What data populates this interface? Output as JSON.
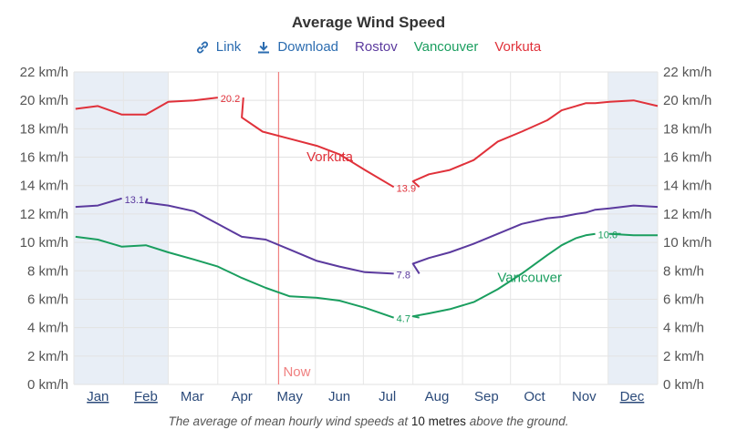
{
  "header": {
    "title": "Average Wind Speed",
    "link_label": "Link",
    "download_label": "Download"
  },
  "caption": {
    "prefix": "The average of mean hourly wind speeds at",
    "emphasis": "10 metres",
    "suffix": "above the ground."
  },
  "colors": {
    "link": "#2b6cb0",
    "rostov": "#5b3a9e",
    "vancouver": "#1a9e5f",
    "vorkuta": "#e0313a",
    "now": "#f08080",
    "shade": "#e8eef6"
  },
  "chart_data": {
    "type": "line",
    "y_unit": "km/h",
    "ylim": [
      0,
      22
    ],
    "y_ticks": [
      "0 km/h",
      "2 km/h",
      "4 km/h",
      "6 km/h",
      "8 km/h",
      "10 km/h",
      "12 km/h",
      "14 km/h",
      "16 km/h",
      "18 km/h",
      "20 km/h",
      "22 km/h"
    ],
    "categories": [
      "Jan",
      "Feb",
      "Mar",
      "Apr",
      "May",
      "Jun",
      "Jul",
      "Aug",
      "Sep",
      "Oct",
      "Nov",
      "Dec"
    ],
    "underlined_categories": [
      "Jan",
      "Feb",
      "Dec"
    ],
    "now_label": "Now",
    "now_day": 128,
    "shaded_ranges": [
      [
        0,
        59
      ],
      [
        334,
        365
      ]
    ],
    "grid": true,
    "series": [
      {
        "name": "Vorkuta",
        "color_key": "vorkuta",
        "x": [
          1,
          15,
          30,
          45,
          59,
          75,
          90,
          105,
          118,
          135,
          152,
          166,
          182,
          200,
          212,
          222,
          235,
          250,
          265,
          280,
          296,
          305,
          314,
          320,
          326,
          335,
          350,
          365
        ],
        "values": [
          19.4,
          19.6,
          19.0,
          19.0,
          19.9,
          20.0,
          20.2,
          18.8,
          17.8,
          17.3,
          16.8,
          16.2,
          15.1,
          13.9,
          14.3,
          14.8,
          15.1,
          15.8,
          17.1,
          17.8,
          18.6,
          19.3,
          19.6,
          19.8,
          19.8,
          19.9,
          20.0,
          19.6
        ],
        "line_label": "Vorkuta",
        "data_labels": [
          {
            "x": 90,
            "text": "20.2"
          },
          {
            "x": 200,
            "text": "13.9"
          }
        ]
      },
      {
        "name": "Rostov",
        "color_key": "rostov",
        "x": [
          1,
          15,
          30,
          45,
          59,
          75,
          90,
          105,
          120,
          135,
          152,
          166,
          182,
          200,
          212,
          222,
          235,
          250,
          265,
          280,
          296,
          305,
          314,
          320,
          326,
          335,
          350,
          365
        ],
        "values": [
          12.5,
          12.6,
          13.1,
          12.8,
          12.6,
          12.2,
          11.3,
          10.4,
          10.2,
          9.5,
          8.7,
          8.3,
          7.9,
          7.8,
          8.5,
          8.9,
          9.3,
          9.9,
          10.6,
          11.3,
          11.7,
          11.8,
          12.0,
          12.1,
          12.3,
          12.4,
          12.6,
          12.5
        ],
        "data_labels": [
          {
            "x": 30,
            "text": "13.1"
          },
          {
            "x": 200,
            "text": "7.8"
          }
        ]
      },
      {
        "name": "Vancouver",
        "color_key": "vancouver",
        "x": [
          1,
          15,
          30,
          45,
          59,
          75,
          90,
          105,
          120,
          135,
          152,
          166,
          182,
          200,
          212,
          222,
          235,
          250,
          265,
          280,
          296,
          305,
          314,
          320,
          326,
          335,
          350,
          365
        ],
        "values": [
          10.4,
          10.2,
          9.7,
          9.8,
          9.3,
          8.8,
          8.3,
          7.5,
          6.8,
          6.2,
          6.1,
          5.9,
          5.4,
          4.7,
          4.8,
          5.0,
          5.3,
          5.8,
          6.7,
          7.8,
          9.1,
          9.8,
          10.3,
          10.5,
          10.6,
          10.6,
          10.5,
          10.5
        ],
        "line_label": "Vancouver",
        "data_labels": [
          {
            "x": 200,
            "text": "4.7"
          },
          {
            "x": 326,
            "text": "10.6"
          }
        ]
      }
    ]
  }
}
